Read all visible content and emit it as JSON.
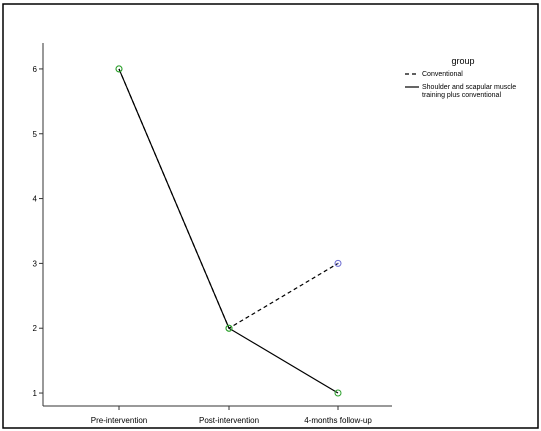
{
  "chart_data": {
    "type": "line",
    "categories": [
      "Pre-intervention",
      "Post-intervention",
      "4-months follow-up"
    ],
    "yticks": [
      1,
      2,
      3,
      4,
      5,
      6
    ],
    "ylim": [
      0.8,
      6.4
    ],
    "legend": {
      "title": "group",
      "position": "top-right"
    },
    "series": [
      {
        "name": "Conventional",
        "values": [
          6,
          2,
          3
        ],
        "line_style": "dashed",
        "legend_lines": [
          "Conventional"
        ],
        "marker_colors": [
          "#2ca02c",
          "#2ca02c",
          "#6a6ad0"
        ]
      },
      {
        "name": "Shoulder and scapular muscle training plus conventional",
        "values": [
          6,
          2,
          1
        ],
        "line_style": "solid",
        "legend_lines": [
          "Shoulder and scapular muscle",
          "training plus conventional"
        ],
        "marker_colors": [
          "#2ca02c",
          "#2ca02c",
          "#2ca02c"
        ]
      }
    ],
    "colors": {
      "line": "#000000",
      "axis": "#333333",
      "frame": "#000000"
    }
  }
}
